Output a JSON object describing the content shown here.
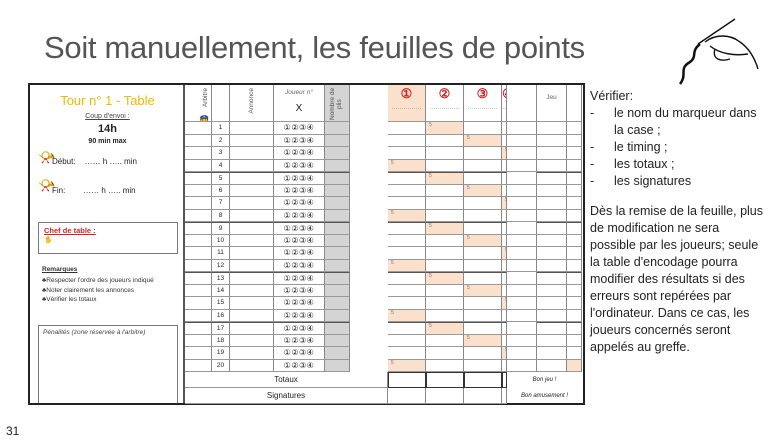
{
  "slide": {
    "title": "Soit manuellement, les feuilles de points",
    "page_number": "31"
  },
  "sheet": {
    "tour_label": "Tour n° 1   -   Table",
    "coup_envoi_label": "Coup d'envoi :",
    "start_time": "14h",
    "max_duration": "90 min max",
    "debut_label": "Début:",
    "fin_label": "Fin:",
    "time_blank": "……  h ….. min",
    "chef_label": "Chef de table :",
    "remarques_title": "Remarques",
    "remarques": [
      "♣Respecter l'ordre des joueurs indiqué",
      "♣Noter clairement les annonces",
      "♣Vérifier les totaux"
    ],
    "penalites_label": "Pénalités (zone réservée à l'arbitre)",
    "headers": {
      "arbitre": "Arbitre",
      "donne": "Donne",
      "annonce": "Annonce",
      "joueur": "Joueur n°",
      "joueur_x": "X",
      "plis": "Nombre de plis",
      "players": [
        "①",
        "②",
        "③",
        "④"
      ],
      "player_blank": "……………",
      "jeu": "Jeu",
      "total": "Total"
    },
    "player_choice": "①②③④",
    "rows": [
      {
        "donne": "1",
        "mark_col": 2,
        "mark": "5"
      },
      {
        "donne": "2",
        "mark_col": 3,
        "mark": "5"
      },
      {
        "donne": "3",
        "mark_col": 4,
        "mark": "5"
      },
      {
        "donne": "4",
        "mark_col": 1,
        "mark": "5"
      },
      {
        "donne": "5",
        "mark_col": 2,
        "mark": "5"
      },
      {
        "donne": "6",
        "mark_col": 3,
        "mark": "5"
      },
      {
        "donne": "7",
        "mark_col": 4,
        "mark": "5"
      },
      {
        "donne": "8",
        "mark_col": 1,
        "mark": "5"
      },
      {
        "donne": "9",
        "mark_col": 2,
        "mark": "5"
      },
      {
        "donne": "10",
        "mark_col": 3,
        "mark": "5"
      },
      {
        "donne": "11",
        "mark_col": 4,
        "mark": "5"
      },
      {
        "donne": "12",
        "mark_col": 1,
        "mark": "5"
      },
      {
        "donne": "13",
        "mark_col": 2,
        "mark": "5"
      },
      {
        "donne": "14",
        "mark_col": 3,
        "mark": "5"
      },
      {
        "donne": "15",
        "mark_col": 4,
        "mark": "5"
      },
      {
        "donne": "16",
        "mark_col": 1,
        "mark": "5"
      },
      {
        "donne": "17",
        "mark_col": 2,
        "mark": "5"
      },
      {
        "donne": "18",
        "mark_col": 3,
        "mark": "5"
      },
      {
        "donne": "19",
        "mark_col": 4,
        "mark": "5"
      },
      {
        "donne": "20",
        "mark_col": 1,
        "mark": "5"
      }
    ],
    "totaux_label": "Totaux",
    "signatures_label": "Signatures",
    "bon_jeu": "Bon jeu !",
    "bon_amusement": "Bon amusement !",
    "colors": {
      "accent_yellow": "#f5b800",
      "red": "#d22222",
      "mark_fill": "#fbe0cc",
      "plis_gray": "#d4d4d4"
    }
  },
  "checklist": {
    "title": "Vérifier:",
    "items": [
      "le nom du marqueur dans la case ;",
      "le timing ;",
      "les totaux ;",
      "les signatures"
    ],
    "paragraph": "Dès la remise de la feuille, plus de modification ne sera possible par les joueurs;  seule la table d'encodage pourra modifier des résultats si des erreurs sont repérées par l'ordinateur. Dans ce cas, les joueurs concernés seront appelés au greffe."
  }
}
